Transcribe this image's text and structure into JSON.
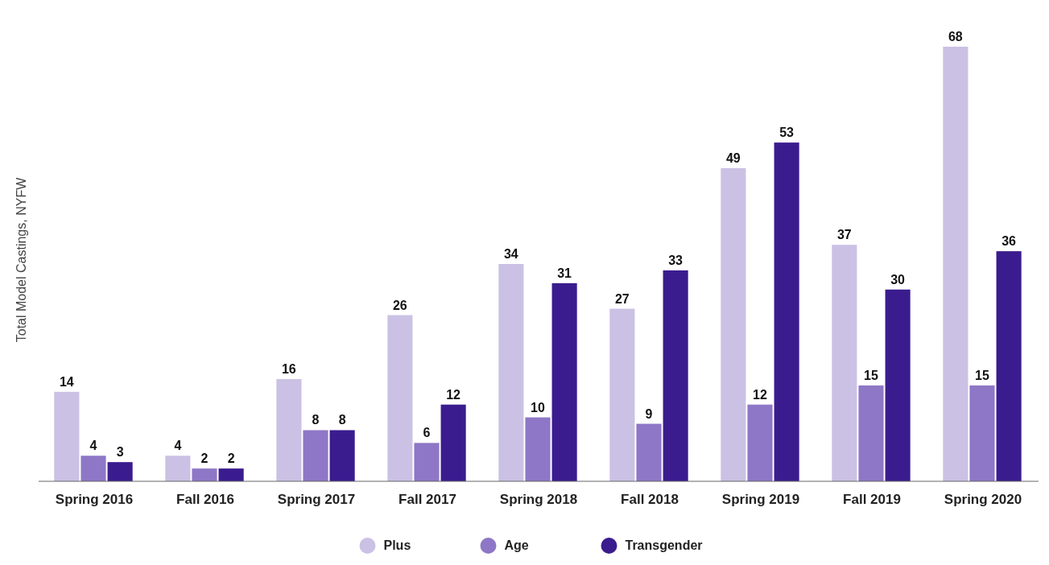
{
  "chart_data": {
    "type": "bar",
    "ylabel": "Total Model Castings, NYFW",
    "categories": [
      "Spring 2016",
      "Fall 2016",
      "Spring 2017",
      "Fall 2017",
      "Spring 2018",
      "Fall 2018",
      "Spring 2019",
      "Fall 2019",
      "Spring 2020"
    ],
    "series": [
      {
        "name": "Plus",
        "color": "#cbc1e4",
        "values": [
          14,
          4,
          16,
          26,
          34,
          27,
          49,
          37,
          68
        ]
      },
      {
        "name": "Age",
        "color": "#8e77c6",
        "values": [
          4,
          2,
          8,
          6,
          10,
          9,
          12,
          15,
          15
        ]
      },
      {
        "name": "Transgender",
        "color": "#3b1c8e",
        "values": [
          3,
          2,
          8,
          12,
          31,
          33,
          53,
          30,
          36
        ]
      }
    ],
    "data_labels": true,
    "legend": "bottom",
    "grid": false
  }
}
